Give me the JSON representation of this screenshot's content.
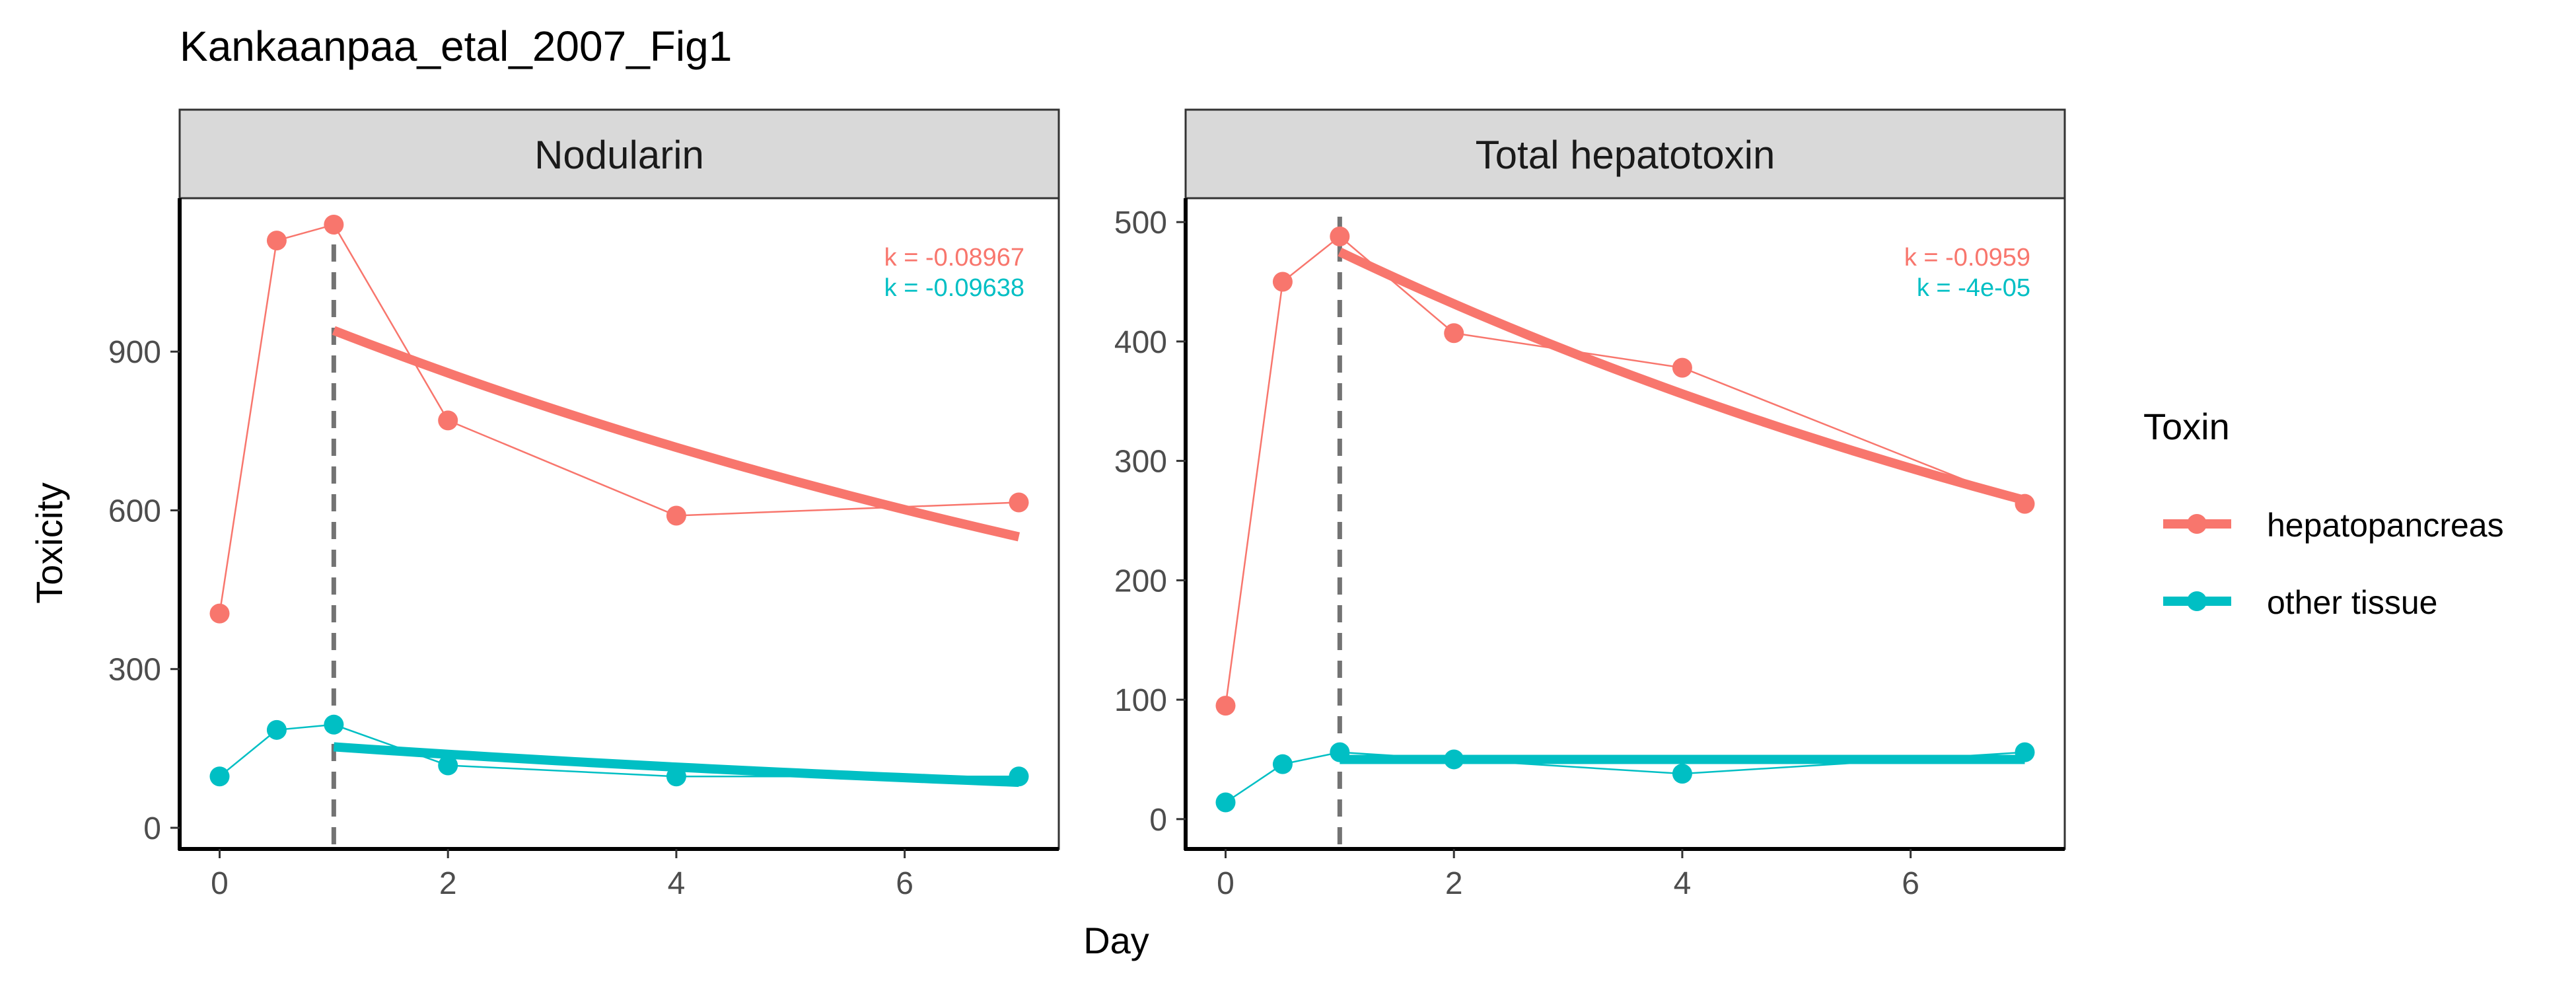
{
  "chart_data": {
    "type": "line",
    "title": "Kankaanpaa_etal_2007_Fig1",
    "xlabel": "Day",
    "ylabel": "Toxicity",
    "legend": {
      "title": "Toxin",
      "position": "right",
      "entries": [
        {
          "name": "hepatopancreas",
          "color": "#F8766D"
        },
        {
          "name": "other tissue",
          "color": "#00BFC4"
        }
      ]
    },
    "grid": false,
    "xlim": [
      -0.35,
      7.35
    ],
    "x_ticks": [
      0,
      2,
      4,
      6
    ],
    "marker_line": {
      "x": 1,
      "style": "dashed",
      "color": "#737373"
    },
    "panels": [
      {
        "strip": "Nodularin",
        "ylim": [
          -40,
          1190
        ],
        "y_ticks": [
          0,
          300,
          600,
          900
        ],
        "k_labels": [
          {
            "text": "k = -0.08967",
            "color": "#F8766D"
          },
          {
            "text": "k = -0.09638",
            "color": "#00BFC4"
          }
        ],
        "series": [
          {
            "name": "hepatopancreas",
            "color": "#F8766D",
            "points": [
              [
                0,
                405
              ],
              [
                0.5,
                1110
              ],
              [
                1,
                1140
              ],
              [
                2,
                770
              ],
              [
                4,
                590
              ],
              [
                7,
                615
              ]
            ],
            "fit": [
              [
                1,
                940
              ],
              [
                7,
                550
              ]
            ],
            "fit_k": -0.08967
          },
          {
            "name": "other tissue",
            "color": "#00BFC4",
            "points": [
              [
                0,
                97
              ],
              [
                0.5,
                185
              ],
              [
                1,
                195
              ],
              [
                2,
                118
              ],
              [
                4,
                97
              ],
              [
                7,
                97
              ]
            ],
            "fit": [
              [
                1,
                153
              ],
              [
                7,
                86
              ]
            ],
            "fit_k": -0.09638
          }
        ]
      },
      {
        "strip": "Total hepatotoxin",
        "ylim": [
          -25,
          520
        ],
        "y_ticks": [
          0,
          100,
          200,
          300,
          400,
          500
        ],
        "k_labels": [
          {
            "text": "k = -0.0959",
            "color": "#F8766D"
          },
          {
            "text": "k = -4e-05",
            "color": "#00BFC4"
          }
        ],
        "series": [
          {
            "name": "hepatopancreas",
            "color": "#F8766D",
            "points": [
              [
                0,
                95
              ],
              [
                0.5,
                450
              ],
              [
                1,
                488
              ],
              [
                2,
                407
              ],
              [
                4,
                378
              ],
              [
                7,
                264
              ]
            ],
            "fit": [
              [
                1,
                475
              ],
              [
                7,
                267
              ]
            ],
            "fit_k": -0.0959
          },
          {
            "name": "other tissue",
            "color": "#00BFC4",
            "points": [
              [
                0,
                14
              ],
              [
                0.5,
                46
              ],
              [
                1,
                56
              ],
              [
                2,
                50
              ],
              [
                4,
                38
              ],
              [
                7,
                56
              ]
            ],
            "fit": [
              [
                1,
                50
              ],
              [
                7,
                50
              ]
            ],
            "fit_k": -4e-05
          }
        ]
      }
    ]
  }
}
